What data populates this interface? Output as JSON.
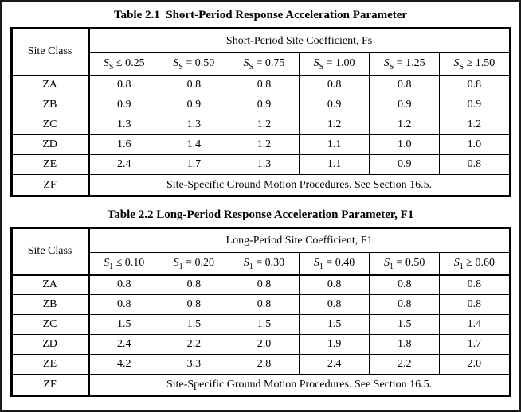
{
  "colors": {
    "background": "#ffffff",
    "border": "#000000",
    "text": "#000000"
  },
  "tables": [
    {
      "title": "Table 2.1  Short-Period Response Acceleration Parameter",
      "corner_header": "Site Class",
      "span_header": "Short-Period Site Coefficient, Fs",
      "col_headers": [
        {
          "base": "S",
          "sub": "S",
          "cond": "≤ 0.25"
        },
        {
          "base": "S",
          "sub": "S",
          "cond": "= 0.50"
        },
        {
          "base": "S",
          "sub": "S",
          "cond": "= 0.75"
        },
        {
          "base": "S",
          "sub": "S",
          "cond": "= 1.00"
        },
        {
          "base": "S",
          "sub": "S",
          "cond": "= 1.25"
        },
        {
          "base": "S",
          "sub": "S",
          "cond": "≥ 1.50"
        }
      ],
      "rows": [
        {
          "site_class": "ZA",
          "values": [
            "0.8",
            "0.8",
            "0.8",
            "0.8",
            "0.8",
            "0.8"
          ]
        },
        {
          "site_class": "ZB",
          "values": [
            "0.9",
            "0.9",
            "0.9",
            "0.9",
            "0.9",
            "0.9"
          ]
        },
        {
          "site_class": "ZC",
          "values": [
            "1.3",
            "1.3",
            "1.2",
            "1.2",
            "1.2",
            "1.2"
          ]
        },
        {
          "site_class": "ZD",
          "values": [
            "1.6",
            "1.4",
            "1.2",
            "1.1",
            "1.0",
            "1.0"
          ]
        },
        {
          "site_class": "ZE",
          "values": [
            "2.4",
            "1.7",
            "1.3",
            "1.1",
            "0.9",
            "0.8"
          ]
        }
      ],
      "footer_row": {
        "site_class": "ZF",
        "note": "Site-Specific Ground Motion Procedures. See Section 16.5."
      }
    },
    {
      "title": "Table 2.2 Long-Period Response Acceleration Parameter, F1",
      "corner_header": "Site Class",
      "span_header": "Long-Period Site Coefficient, F1",
      "col_headers": [
        {
          "base": "S",
          "sub": "1",
          "cond": "≤ 0.10"
        },
        {
          "base": "S",
          "sub": "1",
          "cond": "= 0.20"
        },
        {
          "base": "S",
          "sub": "1",
          "cond": "= 0.30"
        },
        {
          "base": "S",
          "sub": "1",
          "cond": "= 0.40"
        },
        {
          "base": "S",
          "sub": "1",
          "cond": "= 0.50"
        },
        {
          "base": "S",
          "sub": "1",
          "cond": "≥ 0.60"
        }
      ],
      "rows": [
        {
          "site_class": "ZA",
          "values": [
            "0.8",
            "0.8",
            "0.8",
            "0.8",
            "0.8",
            "0.8"
          ]
        },
        {
          "site_class": "ZB",
          "values": [
            "0.8",
            "0.8",
            "0.8",
            "0.8",
            "0.8",
            "0.8"
          ]
        },
        {
          "site_class": "ZC",
          "values": [
            "1.5",
            "1.5",
            "1.5",
            "1.5",
            "1.5",
            "1.4"
          ]
        },
        {
          "site_class": "ZD",
          "values": [
            "2.4",
            "2.2",
            "2.0",
            "1.9",
            "1.8",
            "1.7"
          ]
        },
        {
          "site_class": "ZE",
          "values": [
            "4.2",
            "3.3",
            "2.8",
            "2.4",
            "2.2",
            "2.0"
          ]
        }
      ],
      "footer_row": {
        "site_class": "ZF",
        "note": "Site-Specific Ground Motion Procedures. See Section 16.5."
      }
    }
  ]
}
